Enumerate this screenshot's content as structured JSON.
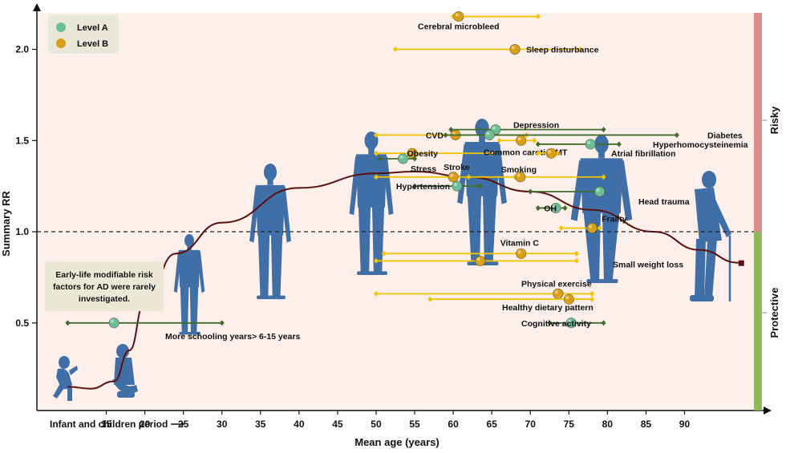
{
  "colors": {
    "background": "#fdf0ea",
    "level_a": "#6bbf98",
    "level_b": "#d9a017",
    "ci_a": "#3f6b2c",
    "ci_b": "#f2c300",
    "silhouette": "#3f6fa6",
    "curve": "#5a1010",
    "risky_bar": "#d88d8f",
    "protective_bar": "#8db85b"
  },
  "chart_data": {
    "type": "scatter",
    "ylabel": "Summary RR",
    "xlabel": "Mean age (years)",
    "x_prefix_label": "Infant and children period ⟶",
    "xticks": [
      15,
      20,
      25,
      30,
      35,
      40,
      45,
      50,
      55,
      60,
      65,
      70,
      75,
      80,
      85,
      90
    ],
    "yticks": [
      0.5,
      1.0,
      1.5,
      2.0
    ],
    "ytick_labels": [
      "0.5",
      "1.0",
      "1.5",
      "2.0"
    ],
    "xlim": [
      6,
      99
    ],
    "ylim": [
      0.02,
      2.2
    ],
    "reference_line": 1.0,
    "legend": {
      "position": "top-left",
      "items": [
        {
          "label": "Level A",
          "level": "A"
        },
        {
          "label": "Level B",
          "level": "B"
        }
      ]
    },
    "side_labels": {
      "risky": "Risky",
      "protective": "Protective"
    },
    "note": "Early-life modifiable risk factors for AD were rarely investigated.",
    "points": [
      {
        "label": "Cerebral microbleed",
        "level": "B",
        "x": 60.7,
        "y": 2.18,
        "ci": [
          60,
          71
        ]
      },
      {
        "label": "Sleep disturbance",
        "level": "B",
        "x": 68,
        "y": 2.0,
        "ci": [
          52.5,
          76.5
        ]
      },
      {
        "label": "Depression",
        "level": "A",
        "x": 65.5,
        "y": 1.56,
        "ci": [
          59.7,
          79.5
        ]
      },
      {
        "label": "CVD",
        "level": "B",
        "x": 60.3,
        "y": 1.53,
        "ci": [
          50,
          69.5
        ]
      },
      {
        "label": "Diabetes",
        "level": "A",
        "x": 64.7,
        "y": 1.53,
        "ci": [
          59,
          89
        ]
      },
      {
        "label": "Hyperhomocysteinemia",
        "level": "A",
        "x": 77.8,
        "y": 1.48,
        "ci": [
          71,
          81.5
        ]
      },
      {
        "label": "Obesity",
        "level": "B",
        "x": 54.7,
        "y": 1.43,
        "ci": [
          50,
          65
        ]
      },
      {
        "label": "Common carotid IMT",
        "level": "B",
        "x": 68.8,
        "y": 1.5,
        "ci": [
          66,
          70.5
        ]
      },
      {
        "label": "Stress",
        "level": "A",
        "x": 53.5,
        "y": 1.4,
        "ci": [
          50.5,
          55
        ]
      },
      {
        "label": "Atrial fibrillation",
        "level": "B",
        "x": 72.7,
        "y": 1.43,
        "ci": [
          71,
          73.5
        ]
      },
      {
        "label": "Stroke",
        "level": "B",
        "x": 60,
        "y": 1.3,
        "ci": [
          50,
          68
        ]
      },
      {
        "label": "Smoking",
        "level": "B",
        "x": 68.7,
        "y": 1.3,
        "ci": [
          62,
          79.5
        ]
      },
      {
        "label": "Hypertension",
        "level": "A",
        "x": 60.5,
        "y": 1.25,
        "ci": [
          55,
          63.5
        ]
      },
      {
        "label": "Head trauma",
        "level": "A",
        "x": 79,
        "y": 1.22,
        "ci": [
          70,
          79.5
        ]
      },
      {
        "label": "OH",
        "level": "A",
        "x": 73.3,
        "y": 1.13,
        "ci": [
          71,
          74.5
        ]
      },
      {
        "label": "Frailty",
        "level": "B",
        "x": 78,
        "y": 1.02,
        "ci": [
          74,
          79
        ]
      },
      {
        "label": "Vitamin C",
        "level": "B",
        "x": 68.8,
        "y": 0.88,
        "ci": [
          51,
          76
        ]
      },
      {
        "label": "Small weight loss",
        "level": "B",
        "x": 63.5,
        "y": 0.84,
        "ci": [
          50,
          76
        ]
      },
      {
        "label": "Physical exercise",
        "level": "B",
        "x": 73.6,
        "y": 0.66,
        "ci": [
          50,
          78
        ]
      },
      {
        "label": "Healthy dietary pattern",
        "level": "B",
        "x": 75,
        "y": 0.63,
        "ci": [
          57,
          78
        ]
      },
      {
        "label": "Cognitive activity",
        "level": "A",
        "x": 75.3,
        "y": 0.5,
        "ci": [
          72.5,
          79.5
        ]
      },
      {
        "label": "More schooling years> 6-15 years",
        "level": "A",
        "x": 16,
        "y": 0.5,
        "ci": [
          10,
          30
        ]
      }
    ]
  }
}
